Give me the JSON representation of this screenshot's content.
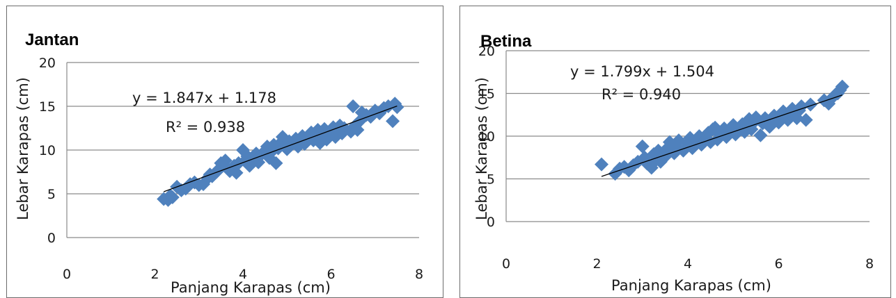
{
  "chart_data": [
    {
      "type": "scatter",
      "title": "Jantan",
      "xlabel": "Panjang Karapas (cm)",
      "ylabel": "Lebar Karapas (cm)",
      "xlim": [
        0,
        8
      ],
      "ylim": [
        0,
        20
      ],
      "xticks": [
        "0",
        "2",
        "4",
        "6",
        "8"
      ],
      "yticks": [
        "0",
        "5",
        "10",
        "15",
        "20"
      ],
      "grid": "horizontal",
      "legend": "none",
      "marker_color": "#4f81bd",
      "equation": "y = 1.847x + 1.178",
      "r2_label": "R² = 0.938",
      "trendline": {
        "slope": 1.847,
        "intercept": 1.178,
        "x_range": [
          2.2,
          7.5
        ]
      },
      "points": [
        [
          2.2,
          4.4
        ],
        [
          2.3,
          4.3
        ],
        [
          2.35,
          4.8
        ],
        [
          2.4,
          4.6
        ],
        [
          2.5,
          5.8
        ],
        [
          2.6,
          5.4
        ],
        [
          2.7,
          5.6
        ],
        [
          2.8,
          6.1
        ],
        [
          2.9,
          6.3
        ],
        [
          3.0,
          6.0
        ],
        [
          3.1,
          6.1
        ],
        [
          3.2,
          6.8
        ],
        [
          3.25,
          7.2
        ],
        [
          3.3,
          7.0
        ],
        [
          3.4,
          7.5
        ],
        [
          3.45,
          7.8
        ],
        [
          3.5,
          8.5
        ],
        [
          3.6,
          8.8
        ],
        [
          3.65,
          7.9
        ],
        [
          3.7,
          7.6
        ],
        [
          3.8,
          8.2
        ],
        [
          3.85,
          7.4
        ],
        [
          3.9,
          8.5
        ],
        [
          4.0,
          10.0
        ],
        [
          4.05,
          8.8
        ],
        [
          4.1,
          9.3
        ],
        [
          4.15,
          8.2
        ],
        [
          4.2,
          8.9
        ],
        [
          4.3,
          9.6
        ],
        [
          4.35,
          8.6
        ],
        [
          4.4,
          9.4
        ],
        [
          4.5,
          9.9
        ],
        [
          4.55,
          10.4
        ],
        [
          4.6,
          9.1
        ],
        [
          4.65,
          9.8
        ],
        [
          4.7,
          10.6
        ],
        [
          4.75,
          8.5
        ],
        [
          4.8,
          10.2
        ],
        [
          4.85,
          10.8
        ],
        [
          4.9,
          11.5
        ],
        [
          5.0,
          10.1
        ],
        [
          5.05,
          11.0
        ],
        [
          5.1,
          10.6
        ],
        [
          5.2,
          11.3
        ],
        [
          5.25,
          10.4
        ],
        [
          5.3,
          10.9
        ],
        [
          5.35,
          11.6
        ],
        [
          5.4,
          10.7
        ],
        [
          5.5,
          11.4
        ],
        [
          5.55,
          12.0
        ],
        [
          5.6,
          11.1
        ],
        [
          5.65,
          11.7
        ],
        [
          5.7,
          12.3
        ],
        [
          5.75,
          10.8
        ],
        [
          5.8,
          11.6
        ],
        [
          5.85,
          12.4
        ],
        [
          5.9,
          11.2
        ],
        [
          6.0,
          12.0
        ],
        [
          6.05,
          12.6
        ],
        [
          6.1,
          11.5
        ],
        [
          6.15,
          12.2
        ],
        [
          6.2,
          12.8
        ],
        [
          6.25,
          11.9
        ],
        [
          6.3,
          12.5
        ],
        [
          6.45,
          12.1
        ],
        [
          6.5,
          15.0
        ],
        [
          6.55,
          12.8
        ],
        [
          6.6,
          12.3
        ],
        [
          6.65,
          13.3
        ],
        [
          6.7,
          14.3
        ],
        [
          6.8,
          14.0
        ],
        [
          6.9,
          13.8
        ],
        [
          7.0,
          14.5
        ],
        [
          7.1,
          14.2
        ],
        [
          7.2,
          14.8
        ],
        [
          7.3,
          15.0
        ],
        [
          7.4,
          13.3
        ],
        [
          7.45,
          15.3
        ],
        [
          7.5,
          14.9
        ]
      ]
    },
    {
      "type": "scatter",
      "title": "Betina",
      "xlabel": "Panjang Karapas (cm)",
      "ylabel": "Lebar Karapas (cm)",
      "xlim": [
        0,
        8
      ],
      "ylim": [
        0,
        20
      ],
      "xticks": [
        "0",
        "2",
        "4",
        "6",
        "8"
      ],
      "yticks": [
        "0",
        "5",
        "10",
        "15",
        "20"
      ],
      "grid": "horizontal",
      "legend": "none",
      "marker_color": "#4f81bd",
      "equation": "y = 1.799x + 1.504",
      "r2_label": "R² = 0.940",
      "trendline": {
        "slope": 1.799,
        "intercept": 1.504,
        "x_range": [
          2.1,
          7.4
        ]
      },
      "points": [
        [
          2.1,
          6.7
        ],
        [
          2.4,
          5.6
        ],
        [
          2.5,
          6.2
        ],
        [
          2.6,
          6.4
        ],
        [
          2.7,
          6.0
        ],
        [
          2.8,
          6.6
        ],
        [
          2.9,
          7.0
        ],
        [
          3.0,
          8.8
        ],
        [
          3.05,
          7.5
        ],
        [
          3.1,
          6.8
        ],
        [
          3.2,
          6.3
        ],
        [
          3.25,
          7.9
        ],
        [
          3.3,
          7.2
        ],
        [
          3.35,
          8.3
        ],
        [
          3.4,
          7.0
        ],
        [
          3.5,
          7.6
        ],
        [
          3.55,
          8.6
        ],
        [
          3.6,
          9.3
        ],
        [
          3.7,
          8.0
        ],
        [
          3.75,
          8.8
        ],
        [
          3.8,
          9.5
        ],
        [
          3.9,
          8.3
        ],
        [
          4.0,
          9.1
        ],
        [
          4.05,
          9.8
        ],
        [
          4.1,
          8.6
        ],
        [
          4.2,
          9.4
        ],
        [
          4.25,
          10.0
        ],
        [
          4.3,
          9.0
        ],
        [
          4.4,
          9.7
        ],
        [
          4.45,
          10.4
        ],
        [
          4.5,
          9.3
        ],
        [
          4.55,
          10.8
        ],
        [
          4.6,
          11.0
        ],
        [
          4.65,
          9.6
        ],
        [
          4.7,
          10.2
        ],
        [
          4.8,
          10.9
        ],
        [
          4.85,
          9.9
        ],
        [
          4.9,
          10.5
        ],
        [
          5.0,
          11.3
        ],
        [
          5.05,
          10.2
        ],
        [
          5.1,
          10.8
        ],
        [
          5.2,
          11.4
        ],
        [
          5.25,
          10.5
        ],
        [
          5.3,
          11.1
        ],
        [
          5.35,
          12.0
        ],
        [
          5.4,
          10.8
        ],
        [
          5.45,
          11.6
        ],
        [
          5.5,
          12.2
        ],
        [
          5.6,
          10.1
        ],
        [
          5.65,
          11.5
        ],
        [
          5.7,
          12.1
        ],
        [
          5.8,
          11.1
        ],
        [
          5.85,
          11.8
        ],
        [
          5.9,
          12.4
        ],
        [
          6.0,
          11.6
        ],
        [
          6.05,
          12.3
        ],
        [
          6.1,
          12.9
        ],
        [
          6.2,
          11.9
        ],
        [
          6.25,
          12.6
        ],
        [
          6.3,
          13.2
        ],
        [
          6.4,
          12.1
        ],
        [
          6.45,
          13.0
        ],
        [
          6.5,
          13.5
        ],
        [
          6.6,
          11.9
        ],
        [
          6.7,
          13.7
        ],
        [
          7.0,
          14.2
        ],
        [
          7.1,
          13.8
        ],
        [
          7.2,
          14.6
        ],
        [
          7.3,
          15.0
        ],
        [
          7.35,
          15.4
        ],
        [
          7.4,
          15.8
        ]
      ]
    }
  ]
}
